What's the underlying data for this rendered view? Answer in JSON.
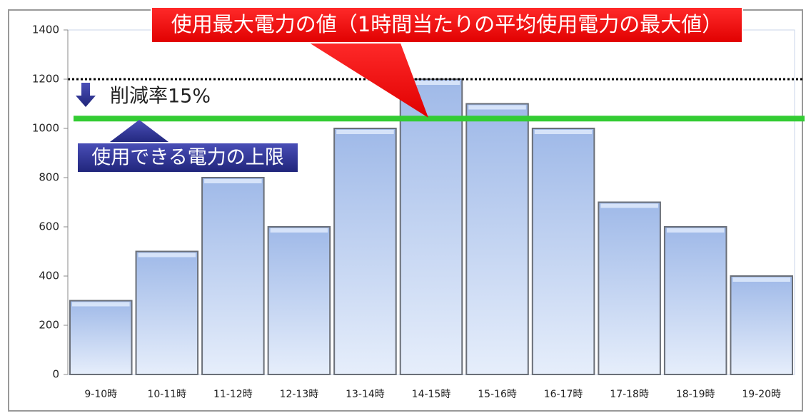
{
  "chart_data": {
    "type": "bar",
    "categories": [
      "9-10時",
      "10-11時",
      "11-12時",
      "12-13時",
      "13-14時",
      "14-15時",
      "15-16時",
      "16-17時",
      "17-18時",
      "18-19時",
      "19-20時"
    ],
    "values": [
      300,
      500,
      800,
      600,
      1000,
      1200,
      1100,
      1000,
      700,
      600,
      400
    ],
    "color": "#b9cdee",
    "ylim": [
      0,
      1400
    ],
    "yticks": [
      0,
      200,
      400,
      600,
      800,
      1000,
      1200,
      1400
    ],
    "grid": false,
    "max_line": {
      "value": 1200,
      "color": "#000000"
    },
    "limit_line": {
      "value": 1040,
      "color": "#33cc33"
    },
    "annotations": {
      "peak": "使用最大電力の値（1時間当たりの平均使用電力の最大値）",
      "reduction": "削減率15%",
      "limit": "使用できる電力の上限"
    }
  }
}
